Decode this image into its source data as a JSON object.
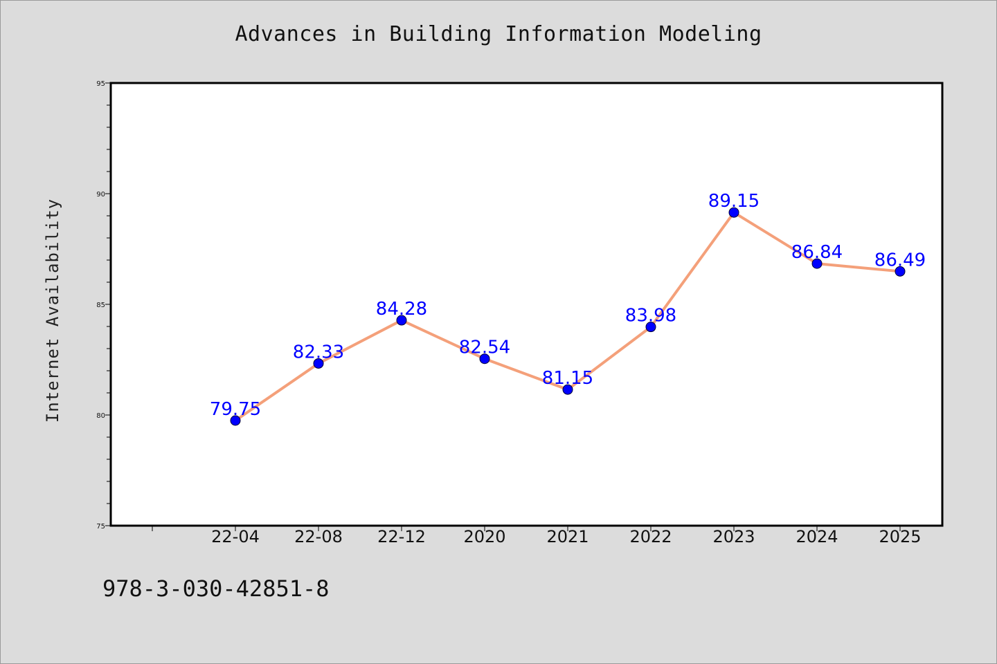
{
  "chart_data": {
    "type": "line",
    "title": "Advances in Building Information Modeling",
    "xlabel": "",
    "ylabel": "Internet Availability",
    "categories": [
      "22-04",
      "22-08",
      "22-12",
      "2020",
      "2021",
      "2022",
      "2023",
      "2024",
      "2025"
    ],
    "series": [
      {
        "values": [
          79.75,
          82.33,
          84.28,
          82.54,
          81.15,
          83.98,
          89.15,
          86.84,
          86.49
        ],
        "labels": [
          "79.75",
          "82.33",
          "84.28",
          "82.54",
          "81.15",
          "83.98",
          "89.15",
          "86.84",
          "86.49"
        ],
        "line_color": "#f4a07a",
        "marker_color": "#0000ff"
      }
    ],
    "ylim": [
      75,
      95
    ],
    "yticks": [
      75,
      80,
      85,
      90,
      95
    ],
    "ytick_labels": [
      "75",
      "80",
      "85",
      "90",
      "95"
    ],
    "grid": false,
    "legend": "none",
    "annotation": "978-3-030-42851-8"
  },
  "colors": {
    "background": "#dcdcdc",
    "plot_background": "#ffffff",
    "line": "#f4a07a",
    "marker": "#0000ff",
    "data_label": "#0000ff"
  }
}
